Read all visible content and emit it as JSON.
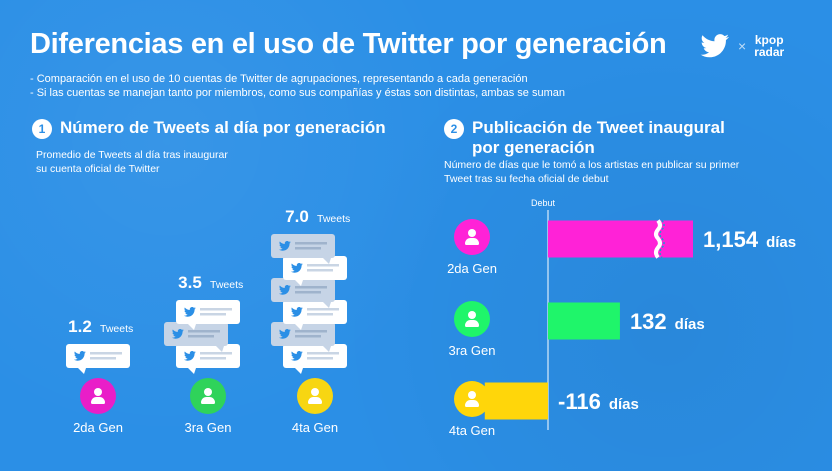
{
  "title": "Diferencias en el uso de Twitter por generación",
  "brand": {
    "x": "×",
    "kpop_line1": "kpop",
    "kpop_line2": "radar",
    "twitter_icon": "twitter-bird-icon"
  },
  "notes": [
    "- Comparación en el uso de 10 cuentas de Twitter de agrupaciones, representando a cada generación",
    "- Si las cuentas se manejan tanto por miembros, como sus compañías y éstas son distintas, ambas se suman"
  ],
  "section1": {
    "number": "1",
    "heading": "Número de Tweets al día por generación",
    "subtitle_line1": "Promedio de Tweets al día tras inaugurar",
    "subtitle_line2": "su cuenta oficial de Twitter"
  },
  "section2": {
    "number": "2",
    "heading_line1": "Publicación de Tweet inaugural",
    "heading_line2": "por generación",
    "subtitle_line1": "Número de días que le tomó a los artistas en publicar su primer",
    "subtitle_line2": "Tweet tras su fecha oficial de debut",
    "axis_label": "Debut"
  },
  "chart_data": [
    {
      "type": "bar",
      "title": "Número de Tweets al día por generación",
      "subtitle": "Promedio de Tweets al día tras inaugurar su cuenta oficial de Twitter",
      "categories": [
        "2da Gen",
        "3ra Gen",
        "4ta Gen"
      ],
      "values": [
        1.2,
        3.5,
        7.0
      ],
      "value_labels": [
        "1.2",
        "3.5",
        "7.0"
      ],
      "unit": "Tweets",
      "bubble_counts": [
        1,
        3,
        6
      ],
      "colors": [
        "#e91ec8",
        "#2fd35a",
        "#f7d612"
      ]
    },
    {
      "type": "bar",
      "orientation": "horizontal",
      "title": "Publicación de Tweet inaugural por generación",
      "subtitle": "Número de días que le tomó a los artistas en publicar su primer Tweet tras su fecha oficial de debut",
      "categories": [
        "2da Gen",
        "3ra Gen",
        "4ta Gen"
      ],
      "values": [
        1154,
        132,
        -116
      ],
      "value_labels": [
        "1,154",
        "132",
        "-116"
      ],
      "unit": "días",
      "axis_label": "Debut",
      "broken_bar": [
        true,
        false,
        false
      ],
      "colors": [
        "#ff22d7",
        "#1ff56a",
        "#ffd60a"
      ]
    }
  ]
}
